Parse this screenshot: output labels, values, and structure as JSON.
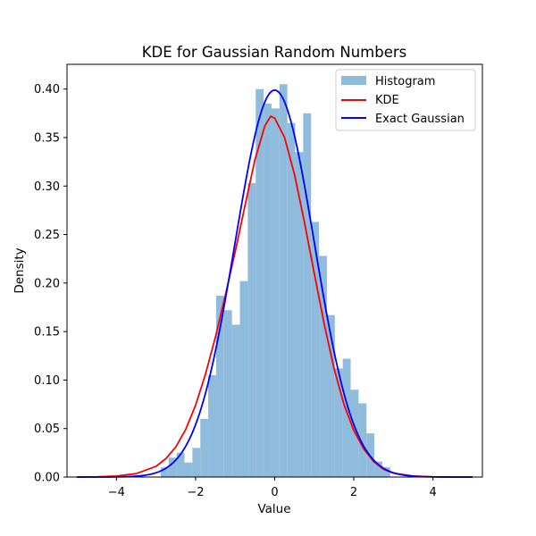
{
  "chart_data": {
    "type": "bar",
    "title": "KDE for Gaussian Random Numbers",
    "xlabel": "Value",
    "ylabel": "Density",
    "xlim": [
      -5.25,
      5.25
    ],
    "ylim": [
      0,
      0.4255
    ],
    "x_ticks": [
      -4,
      -2,
      0,
      2,
      4
    ],
    "x_tick_labels": [
      "−4",
      "−2",
      "0",
      "2",
      "4"
    ],
    "y_ticks": [
      0.0,
      0.05,
      0.1,
      0.15,
      0.2,
      0.25,
      0.3,
      0.35,
      0.4
    ],
    "y_tick_labels": [
      "0.00",
      "0.05",
      "0.10",
      "0.15",
      "0.20",
      "0.25",
      "0.30",
      "0.35",
      "0.40"
    ],
    "legend_position": "top-right",
    "grid": false,
    "series": [
      {
        "name": "Histogram",
        "kind": "histogram",
        "color": "#8fbbdc",
        "bin_width": 0.2,
        "bins": [
          {
            "x0": -2.88,
            "density": 0.01
          },
          {
            "x0": -2.68,
            "density": 0.02
          },
          {
            "x0": -2.48,
            "density": 0.025
          },
          {
            "x0": -2.28,
            "density": 0.015
          },
          {
            "x0": -2.08,
            "density": 0.03
          },
          {
            "x0": -1.88,
            "density": 0.06
          },
          {
            "x0": -1.68,
            "density": 0.105
          },
          {
            "x0": -1.48,
            "density": 0.187
          },
          {
            "x0": -1.28,
            "density": 0.172
          },
          {
            "x0": -1.08,
            "density": 0.157
          },
          {
            "x0": -0.88,
            "density": 0.202
          },
          {
            "x0": -0.68,
            "density": 0.303
          },
          {
            "x0": -0.48,
            "density": 0.4
          },
          {
            "x0": -0.28,
            "density": 0.385
          },
          {
            "x0": -0.08,
            "density": 0.38
          },
          {
            "x0": 0.12,
            "density": 0.405
          },
          {
            "x0": 0.32,
            "density": 0.365
          },
          {
            "x0": 0.52,
            "density": 0.335
          },
          {
            "x0": 0.72,
            "density": 0.375
          },
          {
            "x0": 0.92,
            "density": 0.263
          },
          {
            "x0": 1.12,
            "density": 0.228
          },
          {
            "x0": 1.32,
            "density": 0.167
          },
          {
            "x0": 1.52,
            "density": 0.112
          },
          {
            "x0": 1.72,
            "density": 0.122
          },
          {
            "x0": 1.92,
            "density": 0.09
          },
          {
            "x0": 2.12,
            "density": 0.076
          },
          {
            "x0": 2.32,
            "density": 0.045
          },
          {
            "x0": 2.52,
            "density": 0.016
          },
          {
            "x0": 2.72,
            "density": 0.01
          }
        ]
      },
      {
        "name": "KDE",
        "kind": "line",
        "color": "#ff0000",
        "x": [
          -5.0,
          -4.5,
          -4.0,
          -3.5,
          -3.0,
          -2.75,
          -2.5,
          -2.25,
          -2.0,
          -1.75,
          -1.5,
          -1.25,
          -1.0,
          -0.75,
          -0.5,
          -0.25,
          -0.1,
          0.0,
          0.25,
          0.5,
          0.75,
          1.0,
          1.25,
          1.5,
          1.75,
          2.0,
          2.25,
          2.5,
          2.75,
          3.0,
          3.5,
          4.0,
          4.5,
          5.0
        ],
        "y": [
          0.0,
          0.0002,
          0.001,
          0.0035,
          0.011,
          0.019,
          0.031,
          0.049,
          0.074,
          0.106,
          0.144,
          0.187,
          0.232,
          0.28,
          0.327,
          0.362,
          0.372,
          0.37,
          0.35,
          0.312,
          0.263,
          0.21,
          0.158,
          0.112,
          0.075,
          0.048,
          0.029,
          0.016,
          0.008,
          0.004,
          0.001,
          0.0002,
          0.0,
          0.0
        ]
      },
      {
        "name": "Exact Gaussian",
        "kind": "line",
        "color": "#0000ff",
        "mean": 0,
        "std": 1,
        "x_range": [
          -5,
          5
        ]
      }
    ]
  }
}
